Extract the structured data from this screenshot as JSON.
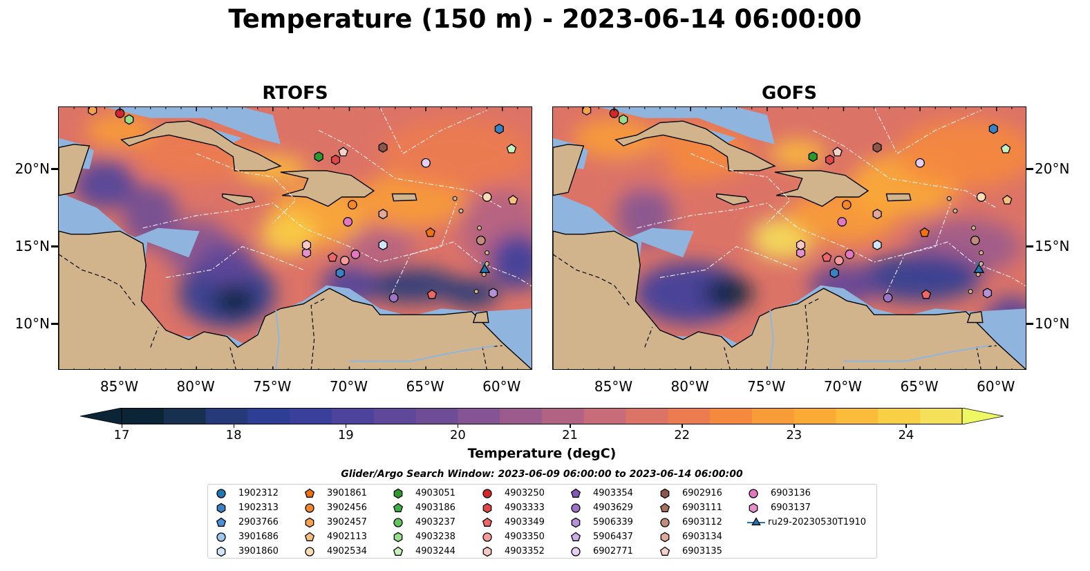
{
  "title": "Temperature (150 m) - 2023-06-14 06:00:00",
  "panels": [
    {
      "title": "RTOFS"
    },
    {
      "title": "GOFS"
    }
  ],
  "map": {
    "lon_range": [
      -89,
      -58
    ],
    "lat_range": [
      7,
      24
    ],
    "lon_ticks": [
      {
        "lon": -85,
        "label": "85°W"
      },
      {
        "lon": -80,
        "label": "80°W"
      },
      {
        "lon": -75,
        "label": "75°W"
      },
      {
        "lon": -70,
        "label": "70°W"
      },
      {
        "lon": -65,
        "label": "65°W"
      },
      {
        "lon": -60,
        "label": "60°W"
      }
    ],
    "lat_ticks": [
      {
        "lat": 20,
        "label": "20°N"
      },
      {
        "lat": 15,
        "label": "15°N"
      },
      {
        "lat": 10,
        "label": "10°N"
      }
    ],
    "colors": {
      "land": "#d2b48c",
      "shelf": "#8fb5df",
      "contour": "#ffffff"
    }
  },
  "colorbar": {
    "label": "Temperature (degC)",
    "ticks": [
      "17",
      "18",
      "19",
      "20",
      "21",
      "22",
      "23",
      "24"
    ],
    "levels": [
      17,
      24.5
    ],
    "colors": [
      "#0b2536",
      "#18304f",
      "#263a7a",
      "#2d3e94",
      "#3a3f9c",
      "#4e439c",
      "#5f4799",
      "#6f4d96",
      "#845494",
      "#9b5b8c",
      "#b26384",
      "#c96c7a",
      "#dc7367",
      "#ec7c50",
      "#f58a3e",
      "#f89c38",
      "#fbaa36",
      "#fcbc3b",
      "#f9cf46",
      "#f5e05a"
    ],
    "over_color": "#eef865"
  },
  "legend": {
    "title": "Glider/Argo Search Window: 2023-06-09 06:00:00 to 2023-06-14 06:00:00",
    "items": [
      {
        "label": "1902312",
        "marker": "circle",
        "color": "#1f77b4"
      },
      {
        "label": "1902313",
        "marker": "hexagon",
        "color": "#3b82c4"
      },
      {
        "label": "2903766",
        "marker": "pentagon",
        "color": "#4a90d9"
      },
      {
        "label": "3901686",
        "marker": "circle",
        "color": "#9ec8ec"
      },
      {
        "label": "3901860",
        "marker": "hexagon",
        "color": "#cfe6f7"
      },
      {
        "label": "3901861",
        "marker": "pentagon",
        "color": "#f0720e"
      },
      {
        "label": "3902456",
        "marker": "circle",
        "color": "#f5872a"
      },
      {
        "label": "3902457",
        "marker": "hexagon",
        "color": "#f8a24a"
      },
      {
        "label": "4902113",
        "marker": "pentagon",
        "color": "#fbbf7c"
      },
      {
        "label": "4902534",
        "marker": "circle",
        "color": "#fddcb3"
      },
      {
        "label": "4903051",
        "marker": "hexagon",
        "color": "#2a9a2a"
      },
      {
        "label": "4903186",
        "marker": "pentagon",
        "color": "#3cb043"
      },
      {
        "label": "4903237",
        "marker": "circle",
        "color": "#62c562"
      },
      {
        "label": "4903238",
        "marker": "hexagon",
        "color": "#98de8a"
      },
      {
        "label": "4903244",
        "marker": "pentagon",
        "color": "#c6f2bb"
      },
      {
        "label": "4903250",
        "marker": "circle",
        "color": "#d62728"
      },
      {
        "label": "4903333",
        "marker": "hexagon",
        "color": "#e04848"
      },
      {
        "label": "4903349",
        "marker": "pentagon",
        "color": "#ee6666"
      },
      {
        "label": "4903350",
        "marker": "circle",
        "color": "#f79a9a"
      },
      {
        "label": "4903352",
        "marker": "hexagon",
        "color": "#fcc8c4"
      },
      {
        "label": "4903354",
        "marker": "pentagon",
        "color": "#8459b5"
      },
      {
        "label": "4903629",
        "marker": "circle",
        "color": "#9d74c8"
      },
      {
        "label": "5906339",
        "marker": "hexagon",
        "color": "#b592d8"
      },
      {
        "label": "5906437",
        "marker": "pentagon",
        "color": "#cdb0e6"
      },
      {
        "label": "6902771",
        "marker": "circle",
        "color": "#e5cff3"
      },
      {
        "label": "6902916",
        "marker": "hexagon",
        "color": "#8c564b"
      },
      {
        "label": "6903111",
        "marker": "pentagon",
        "color": "#a6705f"
      },
      {
        "label": "6903112",
        "marker": "circle",
        "color": "#c08c7c"
      },
      {
        "label": "6903134",
        "marker": "hexagon",
        "color": "#e0a89a"
      },
      {
        "label": "6903135",
        "marker": "pentagon",
        "color": "#f8d0c8"
      },
      {
        "label": "6903136",
        "marker": "circle",
        "color": "#e377c2"
      },
      {
        "label": "6903137",
        "marker": "hexagon",
        "color": "#e88fce"
      },
      {
        "label": "ru29-20230530T1910",
        "marker": "triangle-line",
        "color": "#1f77b4"
      }
    ]
  },
  "observations": [
    {
      "id": "3902457",
      "lon": -86.8,
      "lat": 23.8
    },
    {
      "id": "4903250",
      "lon": -85.0,
      "lat": 23.6
    },
    {
      "id": "4903238",
      "lon": -84.4,
      "lat": 23.2
    },
    {
      "id": "1902313",
      "lon": -60.2,
      "lat": 22.6
    },
    {
      "id": "4903244",
      "lon": -59.4,
      "lat": 21.3
    },
    {
      "id": "6902916",
      "lon": -67.8,
      "lat": 21.4
    },
    {
      "id": "6903135",
      "lon": -70.4,
      "lat": 21.1
    },
    {
      "id": "4903051",
      "lon": -72.0,
      "lat": 20.8
    },
    {
      "id": "4903333",
      "lon": -70.9,
      "lat": 20.6
    },
    {
      "id": "6902771",
      "lon": -65.0,
      "lat": 20.4
    },
    {
      "id": "3902456",
      "lon": -69.8,
      "lat": 17.7
    },
    {
      "id": "6903134",
      "lon": -67.8,
      "lat": 17.1
    },
    {
      "id": "4902534",
      "lon": -61.0,
      "lat": 18.2
    },
    {
      "id": "4902113",
      "lon": -59.3,
      "lat": 18.0
    },
    {
      "id": "6903136",
      "lon": -70.1,
      "lat": 16.6
    },
    {
      "id": "3901861",
      "lon": -64.7,
      "lat": 15.9
    },
    {
      "id": "3901860",
      "lon": -67.8,
      "lat": 15.1
    },
    {
      "id": "6903112",
      "lon": -61.4,
      "lat": 15.4
    },
    {
      "id": "6903137",
      "lon": -72.8,
      "lat": 14.6
    },
    {
      "id": "4903352",
      "lon": -72.8,
      "lat": 15.1
    },
    {
      "id": "4903349",
      "lon": -71.1,
      "lat": 14.3
    },
    {
      "id": "4903350",
      "lon": -70.3,
      "lat": 14.1
    },
    {
      "id": "6903136",
      "lon": -69.6,
      "lat": 14.5
    },
    {
      "id": "1902313",
      "lon": -70.6,
      "lat": 13.3
    },
    {
      "id": "4903349",
      "lon": -64.6,
      "lat": 11.9
    },
    {
      "id": "4903629",
      "lon": -67.1,
      "lat": 11.7
    },
    {
      "id": "5906339",
      "lon": -60.6,
      "lat": 12.0
    }
  ],
  "glider_track": [
    {
      "lon": -61.3,
      "lat": 14.0
    },
    {
      "lon": -61.2,
      "lat": 13.7
    },
    {
      "lon": -61.15,
      "lat": 13.5
    }
  ]
}
